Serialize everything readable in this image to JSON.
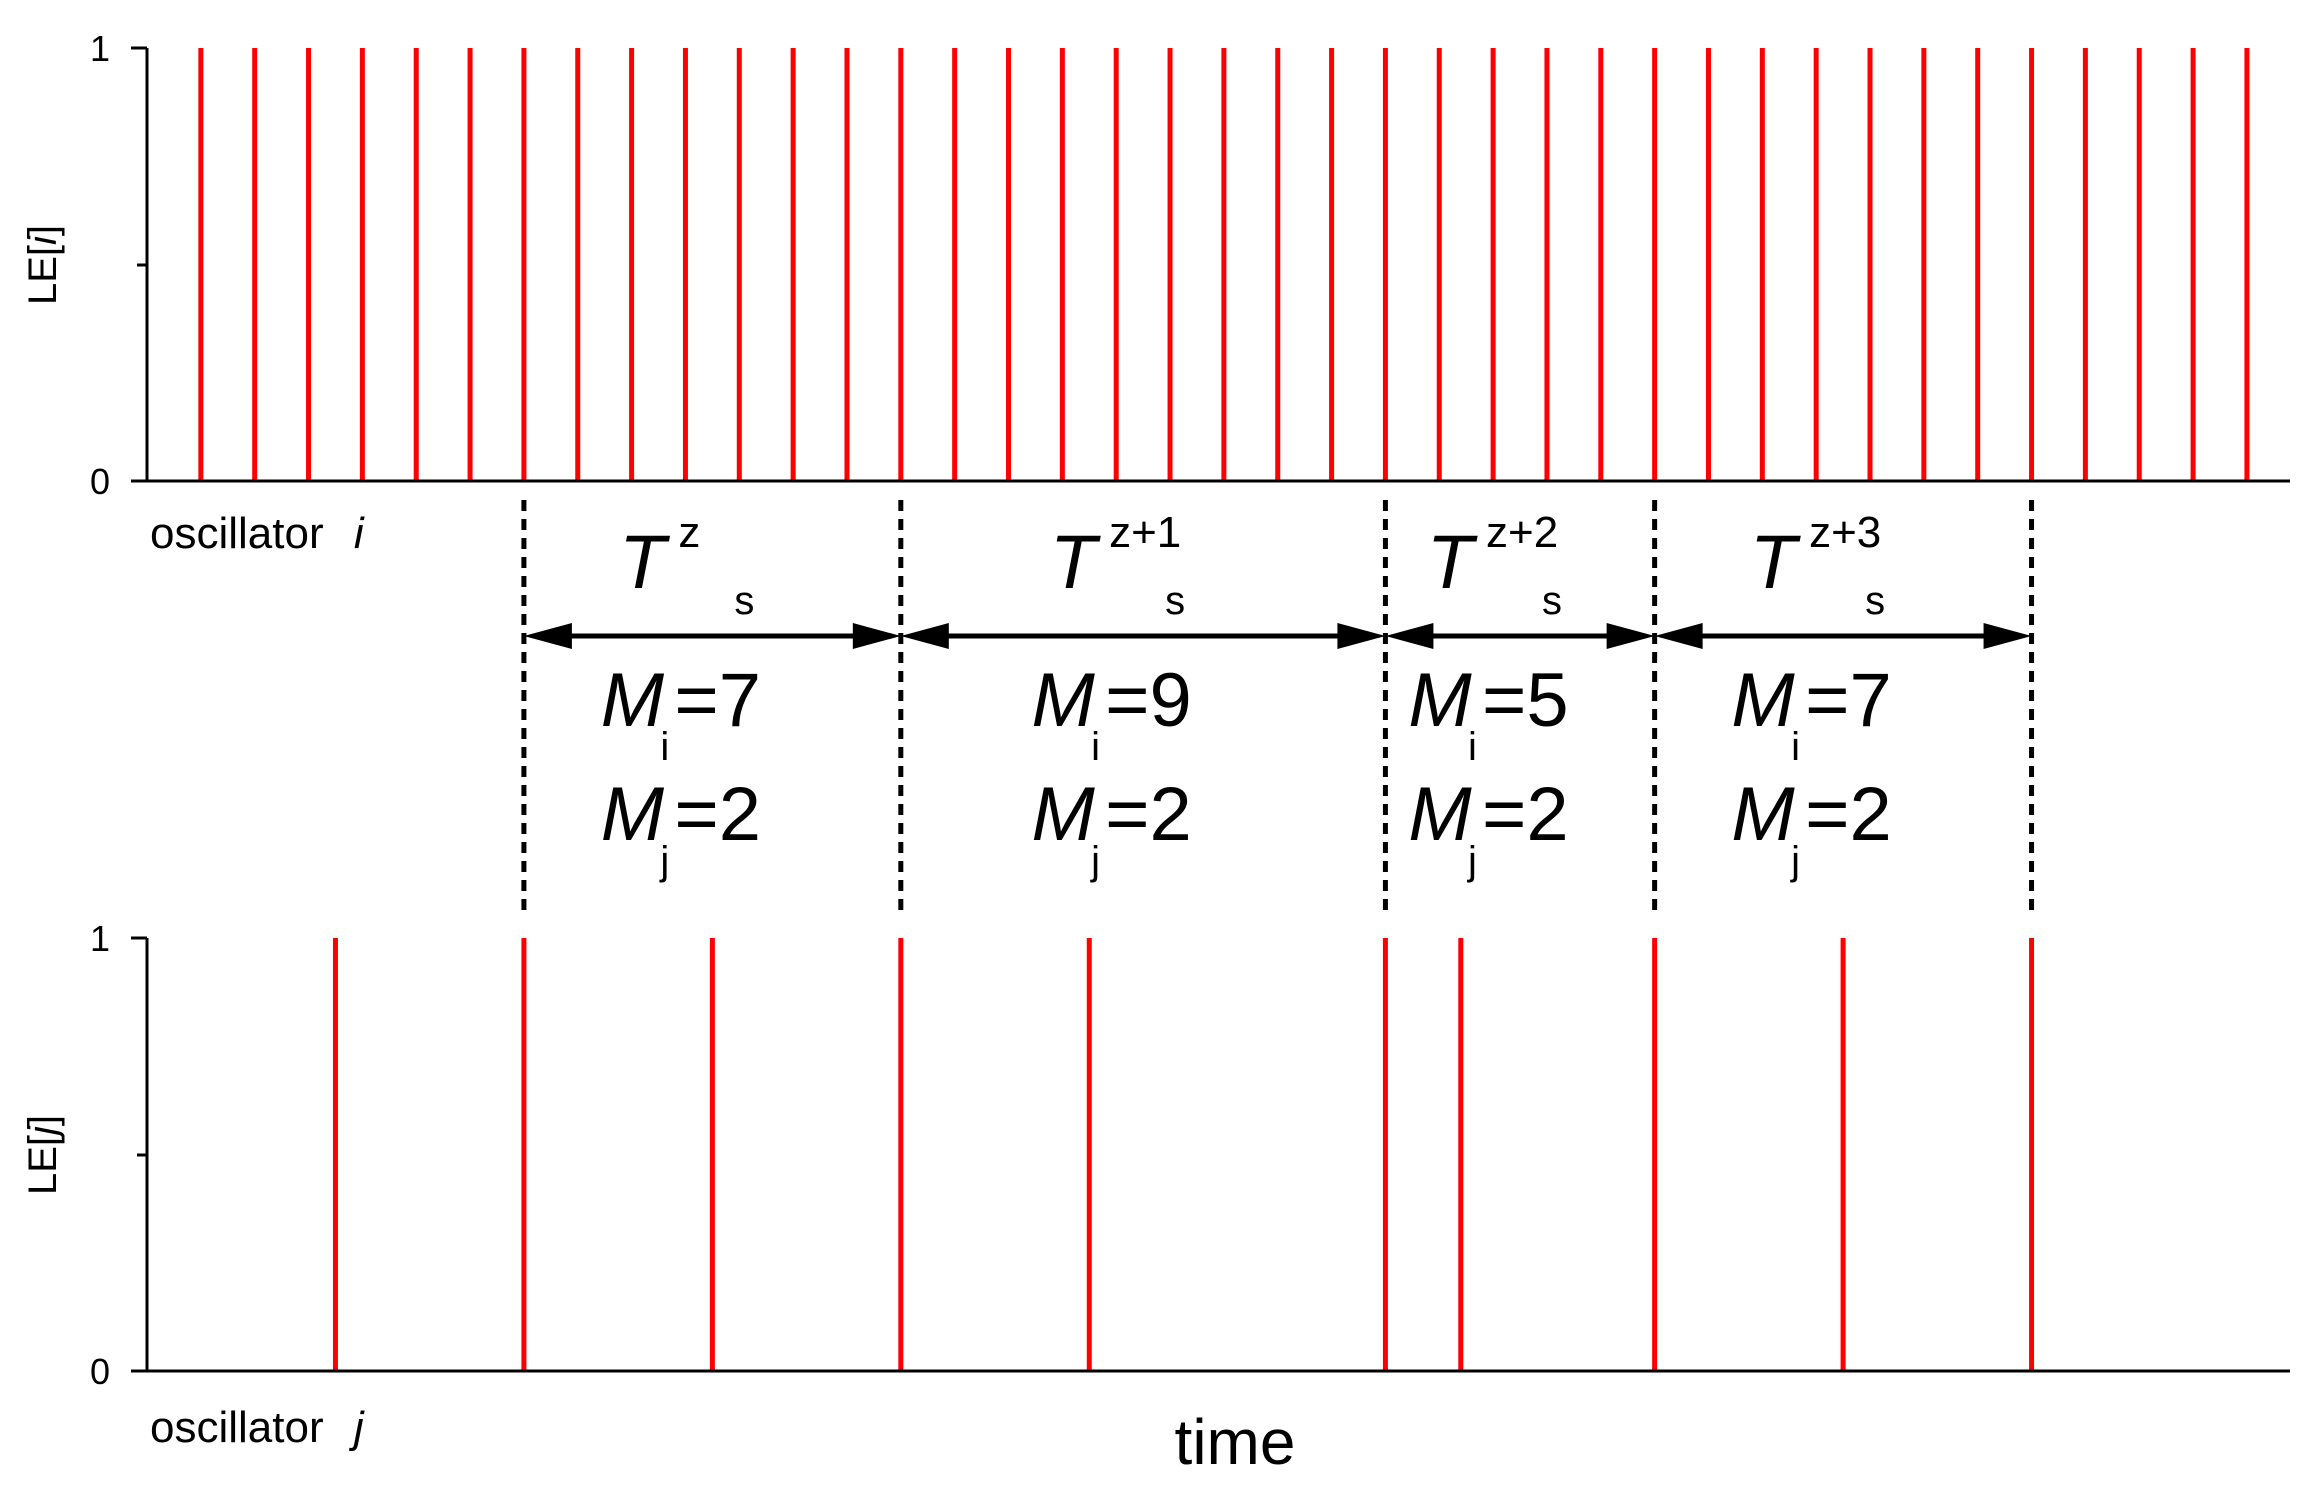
{
  "chart_data": [
    {
      "type": "spike-train",
      "ylabel": "LE[i]",
      "ylabel_italic_part": "i",
      "ylim": [
        0,
        1
      ],
      "yticks": [
        "1",
        "0"
      ],
      "caption": "oscillator",
      "caption_var": "i",
      "color": "#ff0000",
      "spikes": [
        0.5,
        1,
        1.5,
        2,
        2.5,
        3,
        3.5,
        4,
        4.5,
        5,
        5.5,
        6,
        6.5,
        7,
        7.5,
        8,
        8.5,
        9,
        9.5,
        10,
        10.5,
        11,
        11.5,
        12,
        12.5,
        13,
        13.5,
        14,
        14.5,
        15,
        15.5,
        16,
        16.5,
        17,
        17.5,
        18,
        18.5,
        19,
        19.5
      ]
    },
    {
      "type": "spike-train",
      "ylabel": "LE[j]",
      "ylabel_italic_part": "j",
      "ylim": [
        0,
        1
      ],
      "yticks": [
        "1",
        "0"
      ],
      "caption": "oscillator",
      "caption_var": "j",
      "color": "#ff0000",
      "spikes": [
        1.75,
        3.5,
        5.25,
        7,
        8.75,
        11.5,
        12.2,
        14,
        15.75,
        17.5
      ]
    }
  ],
  "x_axis": {
    "label": "time",
    "xlim": [
      0,
      19.9
    ]
  },
  "periods": [
    {
      "t_start": 3.5,
      "t_end": 7,
      "T": "T",
      "sup": "z",
      "sub": "s",
      "Mi_symbol": "M",
      "Mi_sub": "i",
      "Mi_value": "=7",
      "Mj_symbol": "M",
      "Mj_sub": "j",
      "Mj_value": "=2"
    },
    {
      "t_start": 7,
      "t_end": 11.5,
      "T": "T",
      "sup": "z+1",
      "sub": "s",
      "Mi_symbol": "M",
      "Mi_sub": "i",
      "Mi_value": "=9",
      "Mj_symbol": "M",
      "Mj_sub": "j",
      "Mj_value": "=2"
    },
    {
      "t_start": 11.5,
      "t_end": 14,
      "T": "T",
      "sup": "z+2",
      "sub": "s",
      "Mi_symbol": "M",
      "Mi_sub": "i",
      "Mi_value": "=5",
      "Mj_symbol": "M",
      "Mj_sub": "j",
      "Mj_value": "=2"
    },
    {
      "t_start": 14,
      "t_end": 17.5,
      "T": "T",
      "sup": "z+3",
      "sub": "s",
      "Mi_symbol": "M",
      "Mi_sub": "i",
      "Mi_value": "=7",
      "Mj_symbol": "M",
      "Mj_sub": "j",
      "Mj_value": "=2"
    }
  ]
}
